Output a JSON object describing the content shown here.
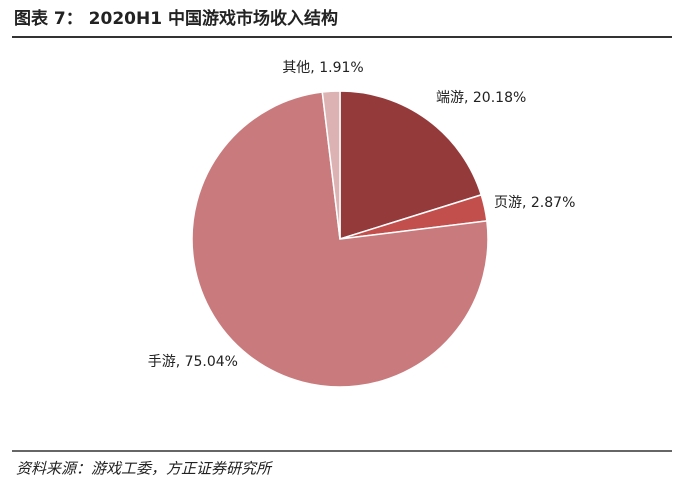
{
  "chart_data": {
    "type": "pie",
    "title": "图表 7： 2020H1 中国游戏市场收入结构",
    "values": [
      20.18,
      2.87,
      75.04,
      1.91
    ],
    "value_labels": [
      "端游, 20.18%",
      "页游, 2.87%",
      "手游, 75.04%",
      "其他, 1.91%"
    ],
    "colors": [
      "#953a3b",
      "#c24f4c",
      "#c97a7c",
      "#dcb2b2"
    ],
    "source": "资料来源：游戏工委，方正证券研究所"
  }
}
